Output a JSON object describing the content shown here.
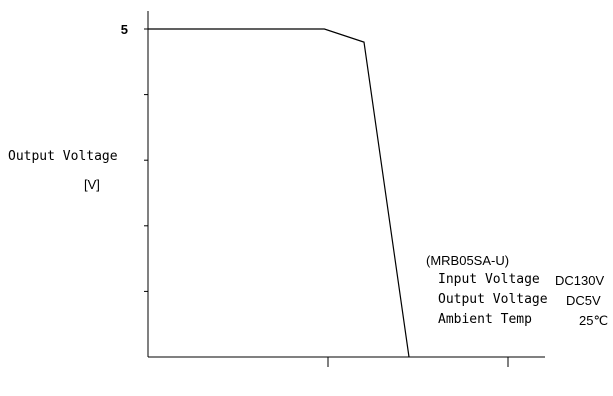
{
  "chart_data": {
    "type": "line",
    "ylabel": "Output Voltage",
    "yunit": "[V]",
    "y_tick_label": "5",
    "ylim": [
      0,
      5
    ],
    "x_tick_count": 2,
    "series": [
      {
        "x": [
          0,
          0.98,
          1.2,
          1.45
        ],
        "y": [
          5,
          5,
          4.8,
          0
        ]
      }
    ],
    "notes": {
      "model": "(MRB05SA-U)",
      "rows": [
        {
          "label": "Input Voltage",
          "value": "DC130V"
        },
        {
          "label": "Output Voltage",
          "value": "DC5V"
        },
        {
          "label": "Ambient Temp",
          "value": "25℃"
        }
      ]
    }
  }
}
